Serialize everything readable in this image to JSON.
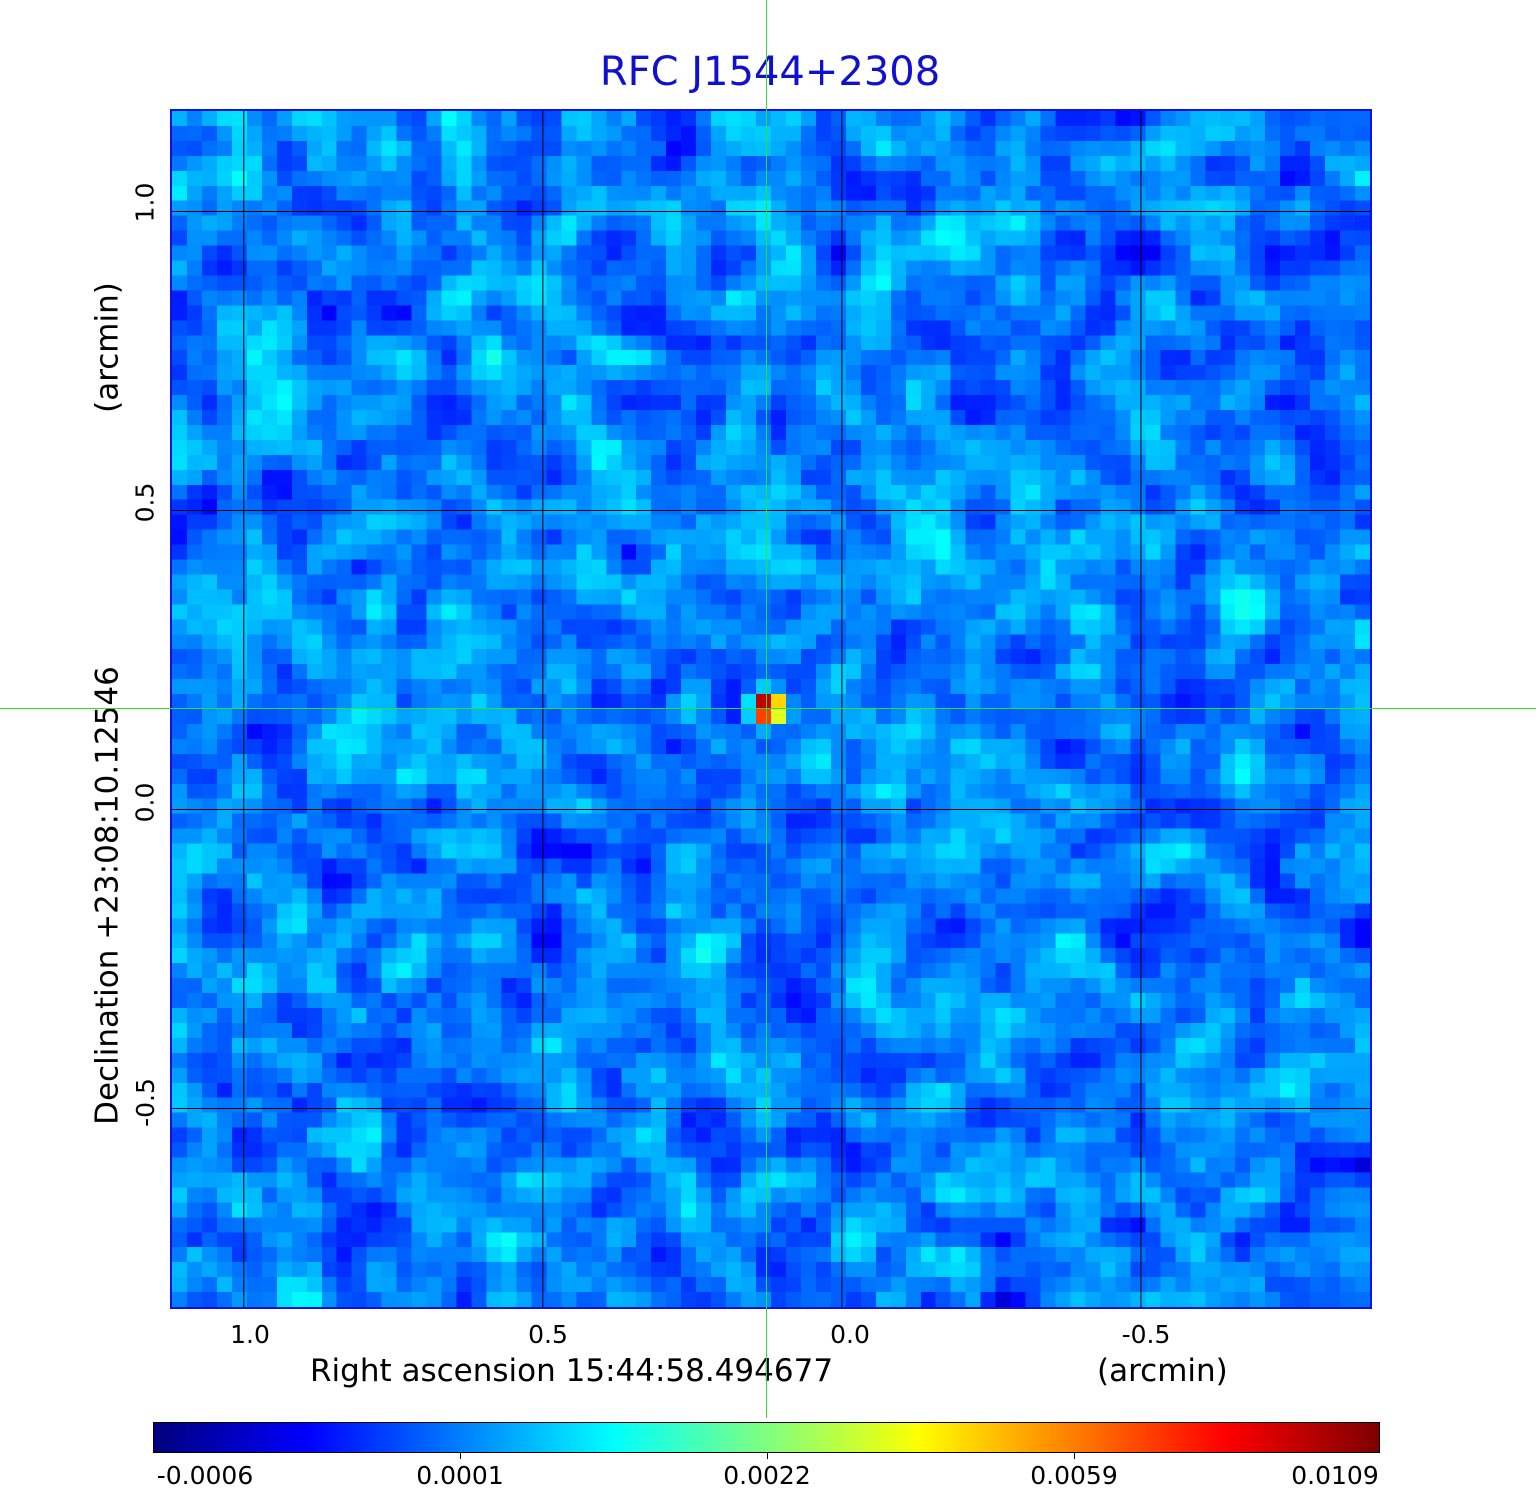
{
  "title": "RFC J1544+2308",
  "chart_data": {
    "type": "heatmap",
    "title": "RFC J1544+2308",
    "xlabel": "Right ascension  15:44:58.494677",
    "xunit": "(arcmin)",
    "ylabel": "Declination  +23:08:10.12546",
    "yunit": "(arcmin)",
    "xlim": [
      1.12,
      -0.883
    ],
    "ylim": [
      -0.832,
      1.168
    ],
    "xticks": [
      1.0,
      0.5,
      0.0,
      -0.5
    ],
    "xtick_labels": [
      "1.0",
      "0.5",
      "0.0",
      "-0.5"
    ],
    "yticks": [
      1.0,
      0.5,
      0.0,
      -0.5
    ],
    "ytick_labels": [
      "1.0",
      "0.5",
      "0.0",
      "-0.5"
    ],
    "grid": true,
    "grid_color": "#000000",
    "colormap": "jet",
    "colorbar": {
      "placement": "bottom",
      "range": [
        -0.0006,
        0.0109
      ],
      "tick_labels": [
        "-0.0006",
        "0.0001",
        "0.0022",
        "0.0059",
        "0.0109"
      ]
    },
    "peak": {
      "x": 0.125,
      "y": 0.17,
      "value": 0.0109
    },
    "crosshair": {
      "x": 0.125,
      "y": 0.17,
      "color": "#30e030"
    }
  }
}
